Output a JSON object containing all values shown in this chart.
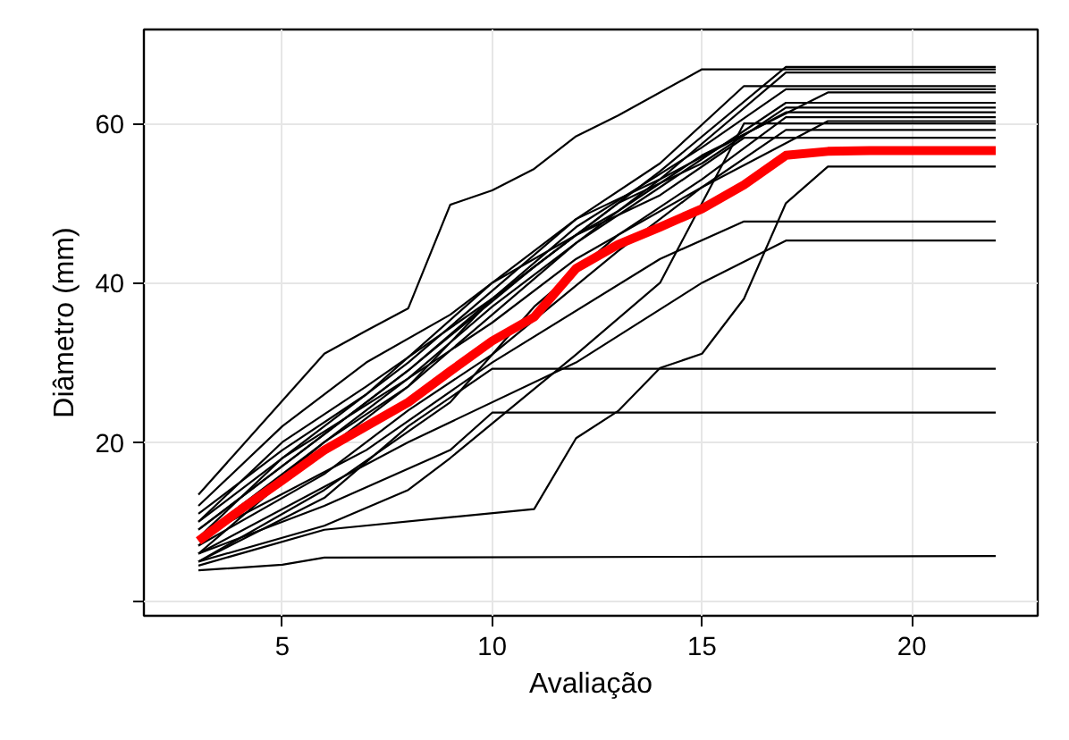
{
  "chart_data": {
    "type": "line",
    "xlabel": "Avaliação",
    "ylabel": "Diâmetro (mm)",
    "xlim": [
      1.7,
      23
    ],
    "ylim": [
      -1.8,
      71.8
    ],
    "xticks": [
      5,
      10,
      15,
      20
    ],
    "yticks": [
      {
        "value": 0,
        "label": null
      },
      20,
      40,
      60
    ],
    "grid": true,
    "line_style": "solid",
    "marker": "none",
    "series": [
      {
        "color": "#000000",
        "x": [
          3,
          5,
          6,
          22
        ],
        "values": [
          3.9,
          4.6,
          5.5,
          5.7
        ]
      },
      {
        "color": "#000000",
        "x": [
          3,
          6,
          9,
          10,
          22
        ],
        "values": [
          6,
          12,
          19,
          23.7,
          23.7
        ]
      },
      {
        "color": "#000000",
        "x": [
          3,
          6,
          8,
          10,
          22
        ],
        "values": [
          5,
          13,
          22,
          29.2,
          29.2
        ]
      },
      {
        "color": "#000000",
        "x": [
          3,
          6,
          11,
          12,
          13,
          14,
          15,
          16,
          17,
          18,
          22
        ],
        "values": [
          4.5,
          9,
          11.6,
          20.5,
          23.9,
          29.3,
          31.1,
          38,
          50,
          54.6,
          54.6
        ]
      },
      {
        "color": "#000000",
        "x": [
          3,
          8,
          12,
          15,
          17,
          22
        ],
        "values": [
          6,
          20,
          30,
          40,
          45.3,
          45.3
        ]
      },
      {
        "color": "#000000",
        "x": [
          3,
          7,
          10,
          14,
          16,
          22
        ],
        "values": [
          8,
          19,
          30,
          43,
          47.7,
          47.7
        ]
      },
      {
        "color": "#000000",
        "x": [
          3,
          6,
          7,
          8,
          9,
          10,
          11,
          12,
          13,
          15,
          22
        ],
        "values": [
          13.4,
          31.1,
          34,
          36.8,
          49.8,
          51.6,
          54.3,
          58.4,
          61,
          66.8,
          66.8
        ]
      },
      {
        "color": "#000000",
        "x": [
          3,
          5,
          8,
          10,
          12,
          14,
          17,
          22
        ],
        "values": [
          9,
          17,
          29,
          38,
          46,
          54,
          67.1,
          67.1
        ]
      },
      {
        "color": "#000000",
        "x": [
          3,
          5,
          8,
          10,
          12,
          14,
          17,
          22
        ],
        "values": [
          8,
          16,
          28,
          37,
          45,
          53,
          66.4,
          66.4
        ]
      },
      {
        "color": "#000000",
        "x": [
          3,
          5,
          8,
          10,
          12,
          14,
          16,
          22
        ],
        "values": [
          10,
          18,
          30,
          39,
          48,
          55,
          64.7,
          64.7
        ]
      },
      {
        "color": "#000000",
        "x": [
          3,
          6,
          8,
          10,
          12,
          15,
          17,
          22
        ],
        "values": [
          7,
          20,
          27,
          38,
          47,
          57,
          64.3,
          64.3
        ]
      },
      {
        "color": "#000000",
        "x": [
          3,
          5,
          7,
          10,
          13,
          15,
          18,
          22
        ],
        "values": [
          11,
          19,
          26,
          40,
          49,
          56,
          63.9,
          63.9
        ]
      },
      {
        "color": "#000000",
        "x": [
          3,
          5,
          8,
          10,
          12,
          14,
          17,
          22
        ],
        "values": [
          6,
          15,
          27,
          36,
          45,
          52,
          62.6,
          62.6
        ]
      },
      {
        "color": "#000000",
        "x": [
          3,
          6,
          8,
          11,
          13,
          15,
          17,
          22
        ],
        "values": [
          9,
          21,
          29,
          42,
          50,
          55,
          62,
          62
        ]
      },
      {
        "color": "#000000",
        "x": [
          3,
          5,
          7,
          9,
          12,
          14,
          17,
          22
        ],
        "values": [
          12,
          22,
          30,
          36,
          48,
          53,
          61.4,
          61.4
        ]
      },
      {
        "color": "#000000",
        "x": [
          3,
          6,
          9,
          11,
          13,
          15,
          17,
          22
        ],
        "values": [
          5,
          14,
          25,
          37,
          46,
          53,
          60.8,
          60.8
        ]
      },
      {
        "color": "#000000",
        "x": [
          3,
          5,
          8,
          10,
          12,
          15,
          18,
          22
        ],
        "values": [
          8,
          18,
          28,
          35,
          43,
          52,
          60.3,
          60.3
        ]
      },
      {
        "color": "#000000",
        "x": [
          3,
          6,
          8,
          10,
          13,
          15,
          17,
          22
        ],
        "values": [
          7,
          16,
          24,
          31,
          44,
          52,
          59.2,
          59.2
        ]
      },
      {
        "color": "#000000",
        "x": [
          3,
          5,
          7,
          10,
          12,
          14,
          16,
          22
        ],
        "values": [
          10,
          20,
          27,
          38,
          46,
          51,
          58.2,
          58.2
        ]
      },
      {
        "color": "#000000",
        "x": [
          3,
          6,
          8,
          9,
          12,
          14,
          16,
          22
        ],
        "values": [
          5,
          9.5,
          14,
          18,
          31,
          40,
          60,
          60
        ]
      },
      {
        "color": "#ff0000",
        "x": [
          3,
          4,
          5,
          6,
          7,
          8,
          9,
          10,
          11,
          12,
          13,
          14,
          15,
          16,
          17,
          18,
          19,
          20,
          21,
          22
        ],
        "values": [
          7.6,
          11.5,
          15.2,
          19,
          22,
          25,
          28.9,
          32.7,
          35.7,
          41.8,
          44.8,
          47,
          49.3,
          52.3,
          56,
          56.5,
          56.6,
          56.6,
          56.6,
          56.6
        ]
      }
    ]
  }
}
